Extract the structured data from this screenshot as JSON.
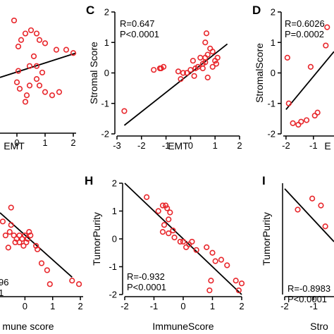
{
  "panels": [
    {
      "id": "B-partial",
      "label": "",
      "xlabel": "EMT",
      "ylabel": "",
      "stats": [],
      "xticks": [
        0,
        1,
        2
      ],
      "yticks": [],
      "chart_data": {
        "type": "scatter",
        "xlim": [
          -0.6,
          2.1
        ],
        "ylim": [
          -1.9,
          2.0
        ],
        "points": [
          [
            -0.1,
            1.5
          ],
          [
            0.3,
            1.1
          ],
          [
            0.05,
            0.7
          ],
          [
            0.5,
            1.2
          ],
          [
            0.7,
            1.1
          ],
          [
            0.8,
            0.9
          ],
          [
            1.0,
            0.8
          ],
          [
            1.4,
            0.6
          ],
          [
            1.75,
            0.6
          ],
          [
            2.0,
            0.5
          ],
          [
            0.6,
            0.4
          ],
          [
            0.45,
            0.1
          ],
          [
            0.9,
            -0.1
          ],
          [
            0.7,
            -0.3
          ],
          [
            1.0,
            -0.7
          ],
          [
            0.8,
            -0.5
          ],
          [
            0.45,
            -0.5
          ],
          [
            0.35,
            -0.8
          ],
          [
            0.3,
            -1.0
          ],
          [
            0.1,
            -0.6
          ],
          [
            0.0,
            -0.4
          ],
          [
            1.25,
            -0.8
          ],
          [
            1.5,
            -0.7
          ],
          [
            0.05,
            -0.05
          ],
          [
            0.7,
            0.1
          ],
          [
            0.15,
            0.9
          ]
        ],
        "fit": [
          [
            -0.6,
            -0.25
          ],
          [
            2.1,
            0.5
          ]
        ]
      }
    },
    {
      "id": "C",
      "label": "C",
      "xlabel": "EMT",
      "ylabel": "Stromal Score",
      "stats": [
        "R=0.647",
        "P<0.0001"
      ],
      "xticks": [
        -3,
        -2,
        -1,
        0,
        1,
        2
      ],
      "yticks": [
        -2,
        -1,
        0,
        1,
        2
      ],
      "chart_data": {
        "type": "scatter",
        "xlim": [
          -3,
          2
        ],
        "ylim": [
          -2,
          2
        ],
        "points": [
          [
            -2.7,
            -1.25
          ],
          [
            -1.5,
            0.1
          ],
          [
            -1.2,
            0.15
          ],
          [
            -1.1,
            0.2
          ],
          [
            -1.25,
            0.15
          ],
          [
            -0.5,
            0.05
          ],
          [
            -0.3,
            0.0
          ],
          [
            -0.15,
            0.0
          ],
          [
            0.0,
            0.1
          ],
          [
            0.2,
            0.15
          ],
          [
            0.3,
            0.2
          ],
          [
            0.5,
            0.3
          ],
          [
            0.6,
            0.5
          ],
          [
            0.7,
            0.6
          ],
          [
            0.8,
            0.8
          ],
          [
            0.9,
            0.7
          ],
          [
            1.0,
            0.4
          ],
          [
            1.05,
            0.3
          ],
          [
            0.65,
            1.3
          ],
          [
            0.6,
            1.0
          ],
          [
            0.1,
            0.4
          ],
          [
            0.4,
            0.5
          ],
          [
            -0.4,
            -0.2
          ],
          [
            0.7,
            -0.15
          ],
          [
            0.15,
            -0.1
          ],
          [
            0.6,
            0.35
          ],
          [
            0.9,
            0.2
          ],
          [
            1.1,
            0.5
          ],
          [
            0.5,
            0.15
          ]
        ],
        "fit": [
          [
            -2.7,
            -1.72
          ],
          [
            1.5,
            0.95
          ]
        ]
      }
    },
    {
      "id": "D",
      "label": "D",
      "xlabel": "E",
      "ylabel": "StromalScore",
      "stats": [
        "R=0.6026",
        "P=0.0002"
      ],
      "xticks": [
        -2,
        -1
      ],
      "yticks": [
        -2,
        -1,
        0,
        1,
        2
      ],
      "chart_data": {
        "type": "scatter",
        "xlim": [
          -2.1,
          -0.25
        ],
        "ylim": [
          -2,
          2
        ],
        "points": [
          [
            -1.95,
            0.5
          ],
          [
            -1.9,
            -1.0
          ],
          [
            -1.75,
            -1.65
          ],
          [
            -1.55,
            -1.7
          ],
          [
            -1.45,
            -1.6
          ],
          [
            -1.25,
            -1.55
          ],
          [
            -0.95,
            -1.4
          ],
          [
            -0.85,
            -1.3
          ],
          [
            -1.1,
            0.2
          ],
          [
            -0.5,
            1.5
          ],
          [
            -0.55,
            0.9
          ]
        ],
        "fit": [
          [
            -2.0,
            -1.2
          ],
          [
            -0.25,
            0.7
          ]
        ]
      }
    },
    {
      "id": "G-partial",
      "label": "",
      "xlabel": "mune score",
      "ylabel": "",
      "stats": [
        "96",
        "1"
      ],
      "xticks": [
        0,
        1,
        2
      ],
      "yticks": [],
      "chart_data": {
        "type": "scatter",
        "xlim": [
          -0.9,
          2.1
        ],
        "ylim": [
          -1.2,
          2.0
        ],
        "points": [
          [
            -0.8,
            0.9
          ],
          [
            -0.5,
            0.8
          ],
          [
            -0.4,
            0.5
          ],
          [
            -0.7,
            0.5
          ],
          [
            -0.3,
            0.4
          ],
          [
            -0.2,
            0.3
          ],
          [
            -0.1,
            0.4
          ],
          [
            0.0,
            0.5
          ],
          [
            0.1,
            0.4
          ],
          [
            0.2,
            0.5
          ],
          [
            -0.5,
            1.3
          ],
          [
            -0.55,
            0.6
          ],
          [
            -0.2,
            0.5
          ],
          [
            0.4,
            0.2
          ],
          [
            0.45,
            0.1
          ],
          [
            -0.35,
            0.3
          ],
          [
            -0.6,
            0.15
          ],
          [
            0.05,
            0.3
          ],
          [
            0.6,
            -0.3
          ],
          [
            0.8,
            -0.5
          ],
          [
            1.7,
            -0.8
          ],
          [
            1.95,
            -0.9
          ],
          [
            0.9,
            -0.9
          ],
          [
            0.15,
            0.6
          ],
          [
            -0.05,
            0.2
          ]
        ],
        "fit": [
          [
            -0.9,
            1.15
          ],
          [
            1.7,
            -0.7
          ]
        ]
      }
    },
    {
      "id": "H",
      "label": "H",
      "xlabel": "ImmuneScore",
      "ylabel": "TumorPurity",
      "stats": [
        "R=-0.932",
        "P<0.0001"
      ],
      "xticks": [
        -2,
        -1,
        0,
        1,
        2
      ],
      "yticks": [
        -2,
        -1,
        0,
        1,
        2
      ],
      "chart_data": {
        "type": "scatter",
        "xlim": [
          -2,
          2
        ],
        "ylim": [
          -2,
          2
        ],
        "points": [
          [
            -1.25,
            1.5
          ],
          [
            -0.85,
            1.0
          ],
          [
            -0.7,
            1.2
          ],
          [
            -0.6,
            1.2
          ],
          [
            -0.55,
            1.1
          ],
          [
            -0.45,
            0.95
          ],
          [
            -0.5,
            0.7
          ],
          [
            -0.65,
            0.5
          ],
          [
            -0.7,
            0.25
          ],
          [
            -0.5,
            0.2
          ],
          [
            -0.35,
            0.3
          ],
          [
            -0.3,
            0.05
          ],
          [
            -0.1,
            -0.1
          ],
          [
            0.0,
            -0.1
          ],
          [
            0.1,
            -0.3
          ],
          [
            0.2,
            -0.2
          ],
          [
            0.3,
            -0.1
          ],
          [
            0.45,
            -0.4
          ],
          [
            0.8,
            -0.3
          ],
          [
            1.0,
            -0.5
          ],
          [
            1.1,
            -0.8
          ],
          [
            1.3,
            -0.75
          ],
          [
            1.5,
            -0.95
          ],
          [
            1.8,
            -1.5
          ],
          [
            1.9,
            -1.85
          ],
          [
            2.0,
            -1.6
          ],
          [
            0.95,
            -1.5
          ],
          [
            0.9,
            -1.85
          ]
        ],
        "fit": [
          [
            -2.0,
            2.0
          ],
          [
            2.0,
            -2.0
          ]
        ]
      }
    },
    {
      "id": "I",
      "label": "I",
      "xlabel": "Stro",
      "ylabel": "TumorPurity",
      "stats": [
        "R=-0.8983",
        "P<0.0001"
      ],
      "xticks": [
        -2,
        -1
      ],
      "yticks": [],
      "chart_data": {
        "type": "scatter",
        "xlim": [
          -2,
          -0.3
        ],
        "ylim": [
          -2,
          2
        ],
        "points": [
          [
            -1.55,
            1.05
          ],
          [
            -1.05,
            1.45
          ],
          [
            -0.75,
            1.2
          ],
          [
            -0.6,
            0.45
          ]
        ],
        "fit": [
          [
            -2.0,
            1.8
          ],
          [
            -0.3,
            -0.1
          ]
        ]
      }
    }
  ],
  "colors": {
    "marker": "#e8262b",
    "axis": "#000000",
    "fit": "#000000"
  }
}
